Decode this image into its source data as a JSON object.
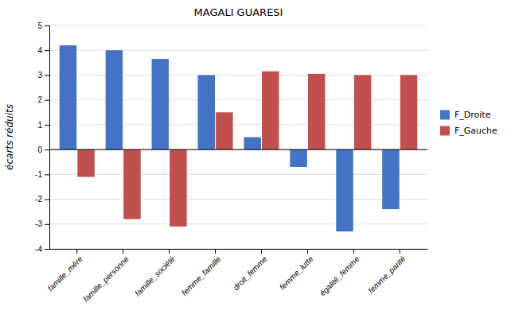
{
  "chart_data": {
    "type": "bar",
    "title": "MAGALI GUARESI",
    "ylabel": "écarts réduits",
    "categories": [
      "famille_mère",
      "famille_personne",
      "famille_société",
      "femme_famille",
      "droit_femme",
      "femme_lutte",
      "égalité_femme",
      "femme_parité"
    ],
    "series": [
      {
        "name": "F_Droite",
        "color": "#4472C4",
        "values": [
          4.2,
          4.0,
          3.65,
          3.0,
          0.5,
          -0.7,
          -3.3,
          -2.4
        ]
      },
      {
        "name": "F_Gauche",
        "color": "#C0504D",
        "values": [
          -1.1,
          -2.8,
          -3.1,
          1.5,
          3.15,
          3.05,
          3.0,
          3.0
        ]
      }
    ],
    "ylim": [
      -4,
      5
    ],
    "yticks": [
      -4,
      -3,
      -2,
      -1,
      0,
      1,
      2,
      3,
      4,
      5
    ],
    "grid": true,
    "legend": "right"
  }
}
